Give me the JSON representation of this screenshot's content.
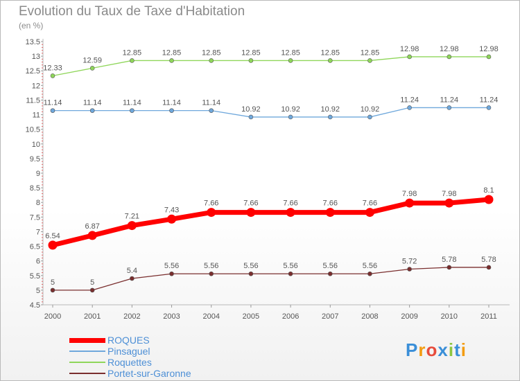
{
  "chart_data": {
    "type": "line",
    "title": "Evolution du Taux de Taxe d'Habitation",
    "subtitle": "(en %)",
    "x": [
      "2000",
      "2001",
      "2002",
      "2003",
      "2004",
      "2005",
      "2006",
      "2007",
      "2008",
      "2009",
      "2010",
      "2011"
    ],
    "ylim": [
      4.5,
      13.5
    ],
    "yticks": [
      "4.5",
      "5",
      "5.5",
      "6",
      "6.5",
      "7",
      "7.5",
      "8",
      "8.5",
      "9",
      "9.5",
      "10",
      "10.5",
      "11",
      "11.5",
      "12",
      "12.5",
      "13",
      "13.5"
    ],
    "grid": false,
    "legend_position": "bottom-left",
    "series": [
      {
        "name": "ROQUES",
        "color": "#ff0000",
        "values": [
          6.54,
          6.87,
          7.21,
          7.43,
          7.66,
          7.66,
          7.66,
          7.66,
          7.66,
          7.98,
          7.98,
          8.1
        ],
        "labels": [
          "6.54",
          "6.87",
          "7.21",
          "7.43",
          "7.66",
          "7.66",
          "7.66",
          "7.66",
          "7.66",
          "7.98",
          "7.98",
          "8.1"
        ]
      },
      {
        "name": "Pinsaguel",
        "color": "#6fa8dc",
        "values": [
          11.14,
          11.14,
          11.14,
          11.14,
          11.14,
          10.92,
          10.92,
          10.92,
          10.92,
          11.24,
          11.24,
          11.24
        ],
        "labels": [
          "11.14",
          "11.14",
          "11.14",
          "11.14",
          "11.14",
          "10.92",
          "10.92",
          "10.92",
          "10.92",
          "11.24",
          "11.24",
          "11.24"
        ]
      },
      {
        "name": "Roquettes",
        "color": "#8fd65a",
        "values": [
          12.33,
          12.59,
          12.85,
          12.85,
          12.85,
          12.85,
          12.85,
          12.85,
          12.85,
          12.98,
          12.98,
          12.98
        ],
        "labels": [
          "12.33",
          "12.59",
          "12.85",
          "12.85",
          "12.85",
          "12.85",
          "12.85",
          "12.85",
          "12.85",
          "12.98",
          "12.98",
          "12.98"
        ]
      },
      {
        "name": "Portet-sur-Garonne",
        "color": "#7a2e2e",
        "values": [
          5,
          5,
          5.4,
          5.56,
          5.56,
          5.56,
          5.56,
          5.56,
          5.56,
          5.72,
          5.78,
          5.78
        ],
        "labels": [
          "5",
          "5",
          "5.4",
          "5.56",
          "5.56",
          "5.56",
          "5.56",
          "5.56",
          "5.56",
          "5.72",
          "5.78",
          "5.78"
        ]
      }
    ]
  },
  "logo": {
    "text": "Proxiti"
  }
}
